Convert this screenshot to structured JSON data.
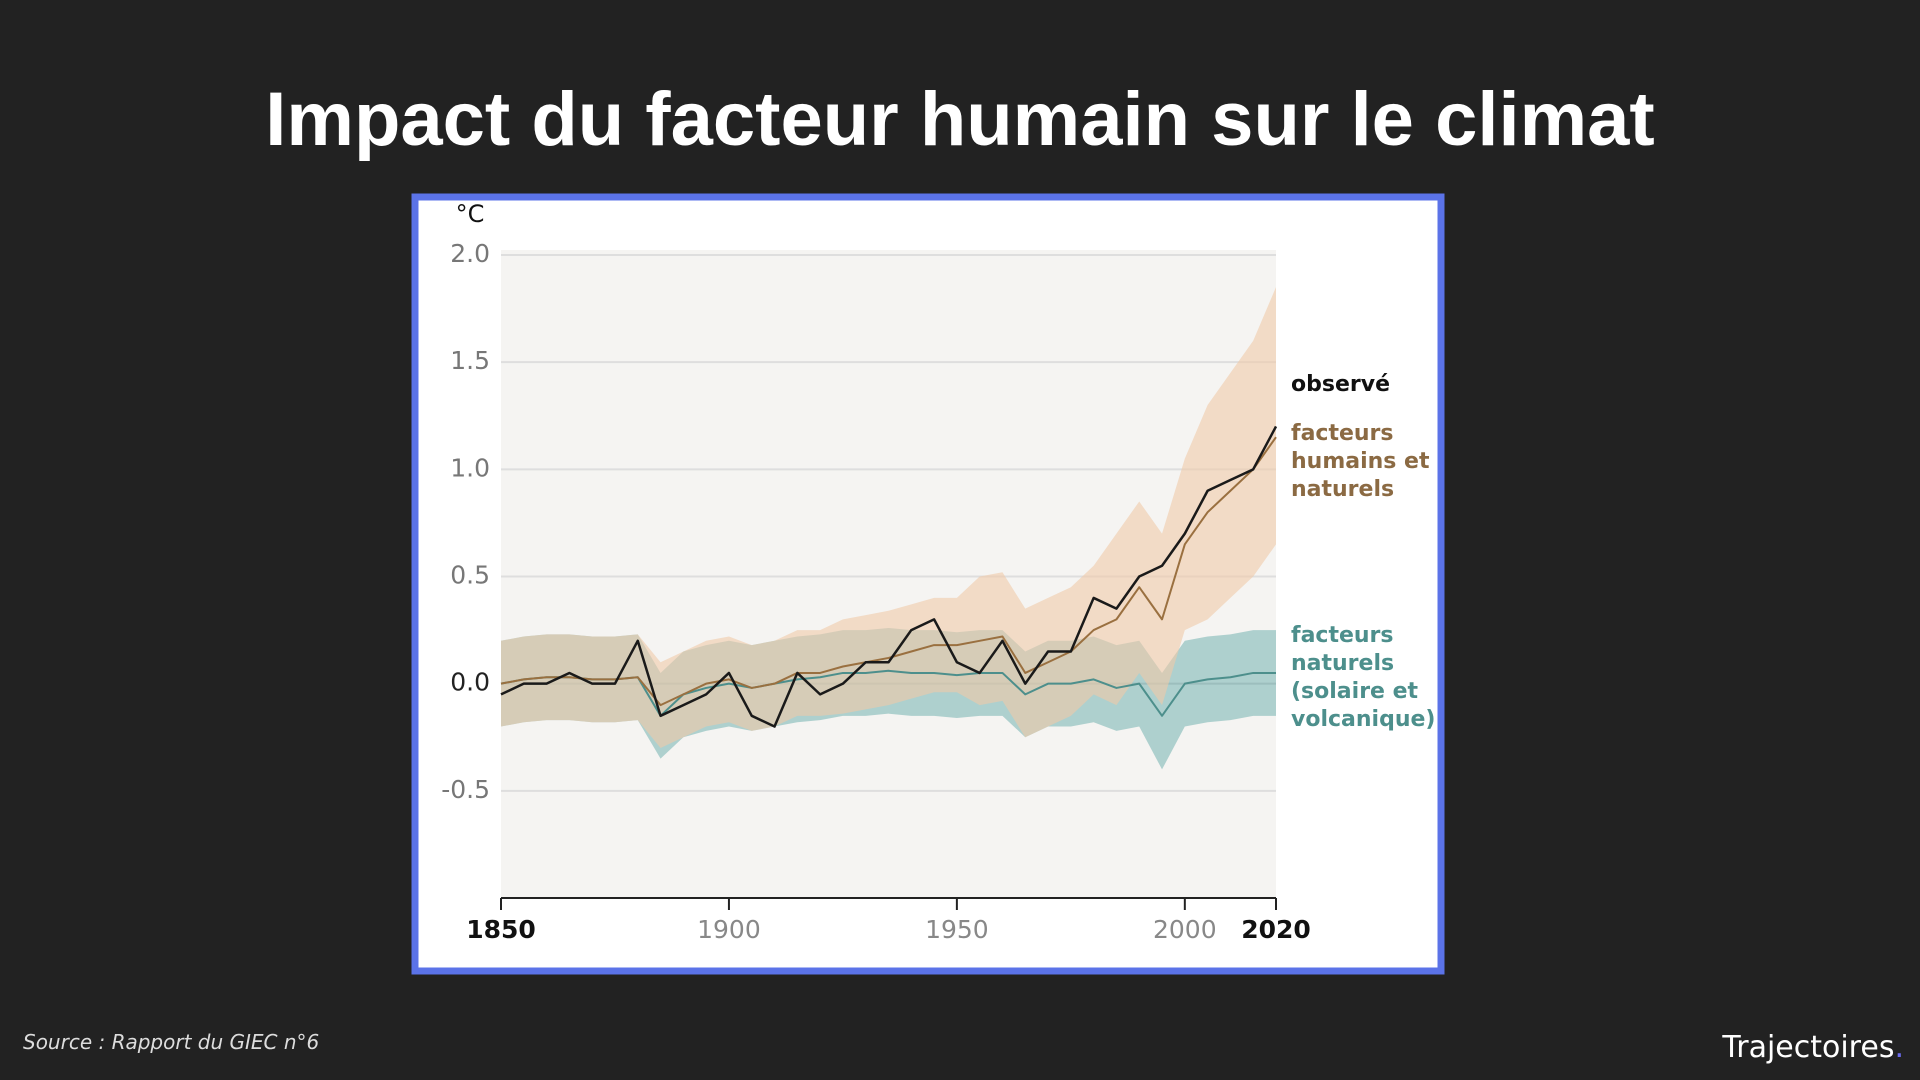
{
  "title": "Impact du facteur humain sur le climat",
  "source": "Source : Rapport du GIEC n°6",
  "brand": {
    "name": "Trajectoires",
    "dot": "."
  },
  "chart_data": {
    "type": "line",
    "y_unit": "°C",
    "x": [
      1850,
      1855,
      1860,
      1865,
      1870,
      1875,
      1880,
      1885,
      1890,
      1895,
      1900,
      1905,
      1910,
      1915,
      1920,
      1925,
      1930,
      1935,
      1940,
      1945,
      1950,
      1955,
      1960,
      1965,
      1970,
      1975,
      1980,
      1985,
      1990,
      1995,
      2000,
      2005,
      2010,
      2015,
      2020
    ],
    "xlim": [
      1850,
      2020
    ],
    "xticks": [
      1850,
      1900,
      1950,
      2000,
      2020
    ],
    "ylim": [
      -1.0,
      2.0
    ],
    "yticks": [
      {
        "value": -0.5,
        "label": "-0.5"
      },
      {
        "value": 0,
        "label": "0.0"
      },
      {
        "value": 0.5,
        "label": "0.5"
      },
      {
        "value": 1,
        "label": "1.0"
      },
      {
        "value": 1.5,
        "label": "1.5"
      },
      {
        "value": 2,
        "label": "2.0"
      }
    ],
    "grid": true,
    "series": [
      {
        "name": "facteurs naturels (solaire et volcanique)",
        "color": "#4d8f8c",
        "band_color": "#7fb8b6",
        "values": [
          0.0,
          0.02,
          0.03,
          0.03,
          0.02,
          0.02,
          0.03,
          -0.15,
          -0.05,
          -0.02,
          0.0,
          -0.02,
          0.0,
          0.02,
          0.03,
          0.05,
          0.05,
          0.06,
          0.05,
          0.05,
          0.04,
          0.05,
          0.05,
          -0.05,
          0.0,
          0.0,
          0.02,
          -0.02,
          0.0,
          -0.15,
          0.0,
          0.02,
          0.03,
          0.05,
          0.05
        ],
        "band_low": [
          -0.2,
          -0.18,
          -0.17,
          -0.17,
          -0.18,
          -0.18,
          -0.17,
          -0.35,
          -0.25,
          -0.22,
          -0.2,
          -0.22,
          -0.2,
          -0.18,
          -0.17,
          -0.15,
          -0.15,
          -0.14,
          -0.15,
          -0.15,
          -0.16,
          -0.15,
          -0.15,
          -0.25,
          -0.2,
          -0.2,
          -0.18,
          -0.22,
          -0.2,
          -0.4,
          -0.2,
          -0.18,
          -0.17,
          -0.15,
          -0.15
        ],
        "band_high": [
          0.2,
          0.22,
          0.23,
          0.23,
          0.22,
          0.22,
          0.23,
          0.05,
          0.15,
          0.18,
          0.2,
          0.18,
          0.2,
          0.22,
          0.23,
          0.25,
          0.25,
          0.26,
          0.25,
          0.25,
          0.24,
          0.25,
          0.25,
          0.15,
          0.2,
          0.2,
          0.22,
          0.18,
          0.2,
          0.05,
          0.2,
          0.22,
          0.23,
          0.25,
          0.25
        ]
      },
      {
        "name": "facteurs humains et naturels",
        "color": "#9a7040",
        "band_color": "#f0c9a8",
        "values": [
          0.0,
          0.02,
          0.03,
          0.03,
          0.02,
          0.02,
          0.03,
          -0.1,
          -0.05,
          0.0,
          0.02,
          -0.02,
          0.0,
          0.05,
          0.05,
          0.08,
          0.1,
          0.12,
          0.15,
          0.18,
          0.18,
          0.2,
          0.22,
          0.05,
          0.1,
          0.15,
          0.25,
          0.3,
          0.45,
          0.3,
          0.65,
          0.8,
          0.9,
          1.0,
          1.15
        ],
        "band_low": [
          -0.2,
          -0.18,
          -0.17,
          -0.17,
          -0.18,
          -0.18,
          -0.17,
          -0.3,
          -0.25,
          -0.2,
          -0.18,
          -0.22,
          -0.2,
          -0.15,
          -0.15,
          -0.14,
          -0.12,
          -0.1,
          -0.07,
          -0.04,
          -0.04,
          -0.1,
          -0.08,
          -0.25,
          -0.2,
          -0.15,
          -0.05,
          -0.1,
          0.05,
          -0.1,
          0.25,
          0.3,
          0.4,
          0.5,
          0.65
        ],
        "band_high": [
          0.2,
          0.22,
          0.23,
          0.23,
          0.22,
          0.22,
          0.23,
          0.1,
          0.15,
          0.2,
          0.22,
          0.18,
          0.2,
          0.25,
          0.25,
          0.3,
          0.32,
          0.34,
          0.37,
          0.4,
          0.4,
          0.5,
          0.52,
          0.35,
          0.4,
          0.45,
          0.55,
          0.7,
          0.85,
          0.7,
          1.05,
          1.3,
          1.45,
          1.6,
          1.85
        ]
      },
      {
        "name": "observé",
        "color": "#1a1a1a",
        "values": [
          -0.05,
          0.0,
          0.0,
          0.05,
          0.0,
          0.0,
          0.2,
          -0.15,
          -0.1,
          -0.05,
          0.05,
          -0.15,
          -0.2,
          0.05,
          -0.05,
          0.0,
          0.1,
          0.1,
          0.25,
          0.3,
          0.1,
          0.05,
          0.2,
          0.0,
          0.15,
          0.15,
          0.4,
          0.35,
          0.5,
          0.55,
          0.7,
          0.9,
          0.95,
          1.0,
          1.2
        ]
      }
    ]
  }
}
